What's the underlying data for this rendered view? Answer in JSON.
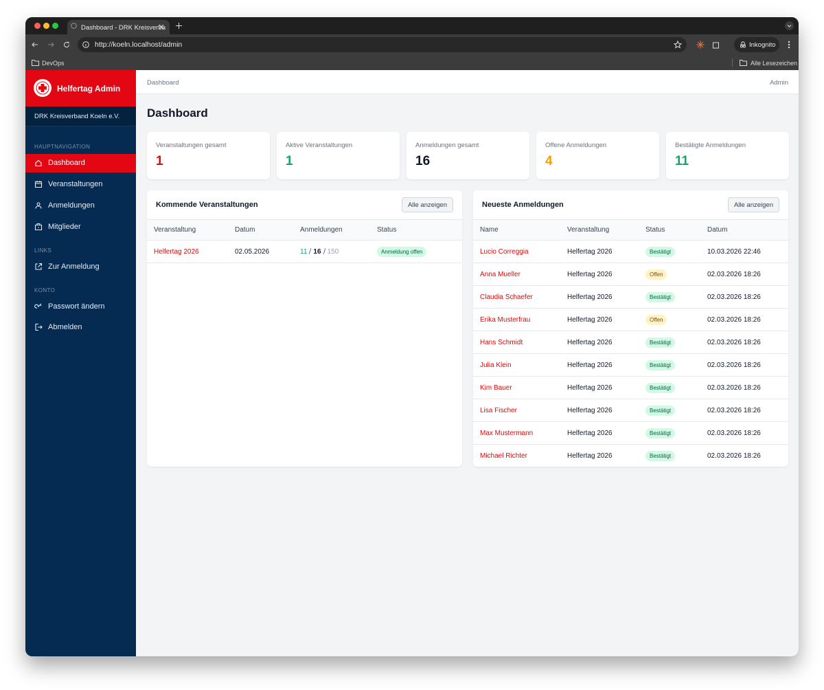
{
  "browser": {
    "tab_title": "Dashboard - DRK Kreisverba",
    "url": "http://koeln.localhost/admin",
    "bookmark": "DevOps",
    "profile": "Inkognito",
    "all_bookmarks": "Alle Lesezeichen"
  },
  "sidebar": {
    "brand": "Helfertag Admin",
    "org": "DRK Kreisverband Koeln e.V.",
    "sections": [
      {
        "title": "HAUPTNAVIGATION",
        "items": [
          "Dashboard",
          "Veranstaltungen",
          "Anmeldungen",
          "Mitglieder"
        ]
      },
      {
        "title": "LINKS",
        "items": [
          "Zur Anmeldung"
        ]
      },
      {
        "title": "KONTO",
        "items": [
          "Passwort ändern",
          "Abmelden"
        ]
      }
    ]
  },
  "header": {
    "breadcrumb": "Dashboard",
    "user": "Admin"
  },
  "page_title": "Dashboard",
  "stats": [
    {
      "label": "Veranstaltungen gesamt",
      "value": 1,
      "color": "#dc0a0a"
    },
    {
      "label": "Aktive Veranstaltungen",
      "value": 1,
      "color": "#16a36a"
    },
    {
      "label": "Anmeldungen gesamt",
      "value": 16,
      "color": "#111827"
    },
    {
      "label": "Offene Anmeldungen",
      "value": 4,
      "color": "#f59e0b"
    },
    {
      "label": "Bestätigte Anmeldungen",
      "value": 11,
      "color": "#16a36a"
    }
  ],
  "upcoming": {
    "title": "Kommende Veranstaltungen",
    "button": "Alle anzeigen",
    "columns": [
      "Veranstaltung",
      "Datum",
      "Anmeldungen",
      "Status"
    ],
    "rows": [
      {
        "event": "Helfertag 2026",
        "date": "02.05.2026",
        "confirmed": 11,
        "total": 16,
        "capacity": 150,
        "status": "Anmeldung offen"
      }
    ]
  },
  "recent": {
    "title": "Neueste Anmeldungen",
    "button": "Alle anzeigen",
    "columns": [
      "Name",
      "Veranstaltung",
      "Status",
      "Datum"
    ],
    "rows": [
      {
        "name": "Lucio Correggia",
        "event": "Helfertag 2026",
        "status": "Bestätigt",
        "tone": "success",
        "date": "10.03.2026 22:46"
      },
      {
        "name": "Anna Mueller",
        "event": "Helfertag 2026",
        "status": "Offen",
        "tone": "warning",
        "date": "02.03.2026 18:26"
      },
      {
        "name": "Claudia Schaefer",
        "event": "Helfertag 2026",
        "status": "Bestätigt",
        "tone": "success",
        "date": "02.03.2026 18:26"
      },
      {
        "name": "Erika Musterfrau",
        "event": "Helfertag 2026",
        "status": "Offen",
        "tone": "warning",
        "date": "02.03.2026 18:26"
      },
      {
        "name": "Hans Schmidt",
        "event": "Helfertag 2026",
        "status": "Bestätigt",
        "tone": "success",
        "date": "02.03.2026 18:26"
      },
      {
        "name": "Julia Klein",
        "event": "Helfertag 2026",
        "status": "Bestätigt",
        "tone": "success",
        "date": "02.03.2026 18:26"
      },
      {
        "name": "Kim Bauer",
        "event": "Helfertag 2026",
        "status": "Bestätigt",
        "tone": "success",
        "date": "02.03.2026 18:26"
      },
      {
        "name": "Lisa Fischer",
        "event": "Helfertag 2026",
        "status": "Bestätigt",
        "tone": "success",
        "date": "02.03.2026 18:26"
      },
      {
        "name": "Max Mustermann",
        "event": "Helfertag 2026",
        "status": "Bestätigt",
        "tone": "success",
        "date": "02.03.2026 18:26"
      },
      {
        "name": "Michael Richter",
        "event": "Helfertag 2026",
        "status": "Bestätigt",
        "tone": "success",
        "date": "02.03.2026 18:26"
      }
    ]
  }
}
